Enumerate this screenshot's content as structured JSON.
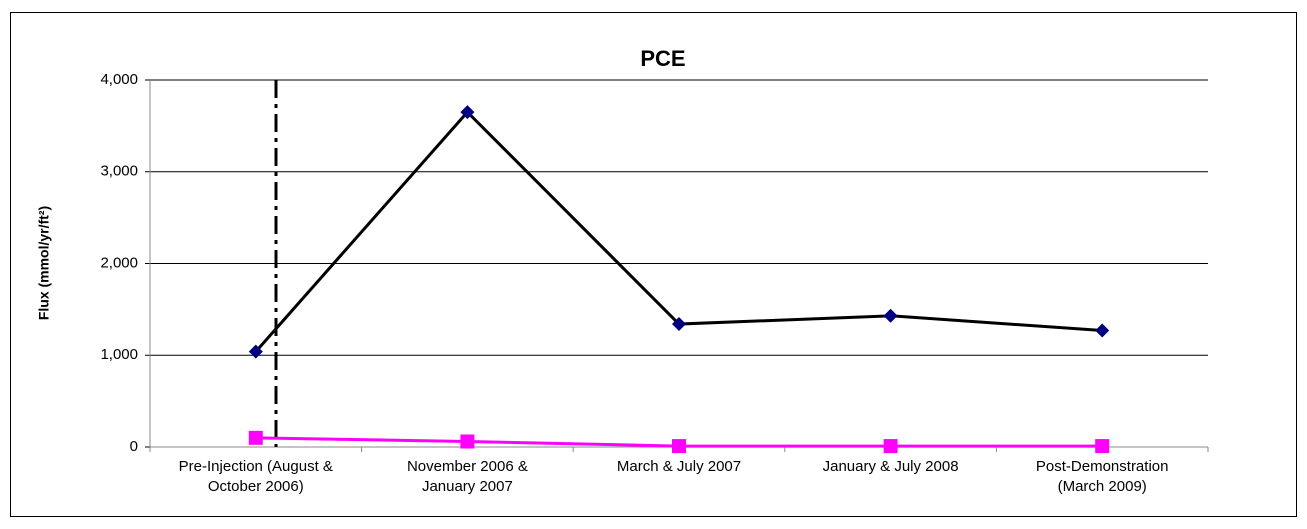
{
  "chart_data": {
    "type": "line",
    "title": "PCE",
    "y_label": "Flux (mmol/yr/ft²)",
    "categories": [
      "Pre-Injection (August &\nOctober 2006)",
      "November 2006 &\nJanuary 2007",
      "March & July 2007",
      "January & July 2008",
      "Post-Demonstration\n(March 2009)"
    ],
    "series": [
      {
        "color": "#000080",
        "line_color": "#000000",
        "marker": "diamond",
        "values": [
          1040,
          3650,
          1340,
          1430,
          1270
        ]
      },
      {
        "color": "#ff00ff",
        "line_color": "#ff00ff",
        "marker": "square",
        "values": [
          100,
          60,
          10,
          10,
          10
        ]
      }
    ],
    "ylim": [
      0,
      4000
    ],
    "yticks": [
      0,
      {
        "value": 1000,
        "label": "1,000"
      },
      {
        "value": 2000,
        "label": "2,000"
      },
      {
        "value": 3000,
        "label": "3,000"
      },
      {
        "value": 4000,
        "label": "4,000"
      }
    ],
    "grid": true
  }
}
